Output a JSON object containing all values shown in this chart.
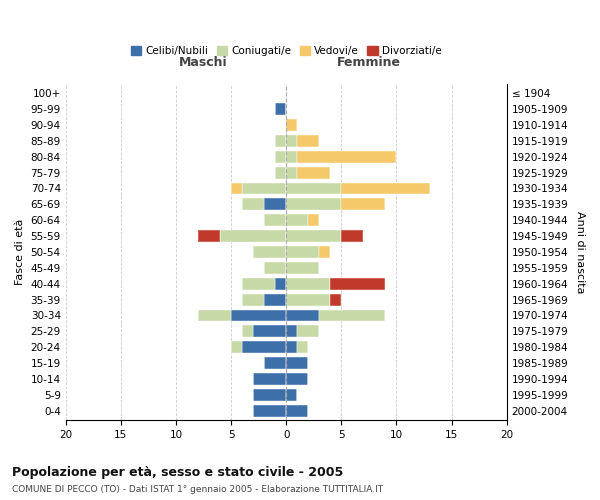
{
  "age_groups": [
    "0-4",
    "5-9",
    "10-14",
    "15-19",
    "20-24",
    "25-29",
    "30-34",
    "35-39",
    "40-44",
    "45-49",
    "50-54",
    "55-59",
    "60-64",
    "65-69",
    "70-74",
    "75-79",
    "80-84",
    "85-89",
    "90-94",
    "95-99",
    "100+"
  ],
  "birth_years": [
    "2000-2004",
    "1995-1999",
    "1990-1994",
    "1985-1989",
    "1980-1984",
    "1975-1979",
    "1970-1974",
    "1965-1969",
    "1960-1964",
    "1955-1959",
    "1950-1954",
    "1945-1949",
    "1940-1944",
    "1935-1939",
    "1930-1934",
    "1925-1929",
    "1920-1924",
    "1915-1919",
    "1910-1914",
    "1905-1909",
    "≤ 1904"
  ],
  "maschi": {
    "celibi": [
      3,
      3,
      3,
      2,
      4,
      3,
      5,
      2,
      1,
      0,
      0,
      0,
      0,
      2,
      0,
      0,
      0,
      0,
      0,
      1,
      0
    ],
    "coniugati": [
      0,
      0,
      0,
      0,
      1,
      1,
      3,
      2,
      3,
      2,
      3,
      6,
      2,
      2,
      4,
      1,
      1,
      1,
      0,
      0,
      0
    ],
    "vedovi": [
      0,
      0,
      0,
      0,
      0,
      0,
      0,
      0,
      0,
      0,
      0,
      0,
      0,
      0,
      1,
      0,
      0,
      0,
      0,
      0,
      0
    ],
    "divorziati": [
      0,
      0,
      0,
      0,
      0,
      0,
      0,
      0,
      0,
      0,
      0,
      2,
      0,
      0,
      0,
      0,
      0,
      0,
      0,
      0,
      0
    ]
  },
  "femmine": {
    "nubili": [
      2,
      1,
      2,
      2,
      1,
      1,
      3,
      0,
      0,
      0,
      0,
      0,
      0,
      0,
      0,
      0,
      0,
      0,
      0,
      0,
      0
    ],
    "coniugate": [
      0,
      0,
      0,
      0,
      1,
      2,
      6,
      4,
      4,
      3,
      3,
      5,
      2,
      5,
      5,
      1,
      1,
      1,
      0,
      0,
      0
    ],
    "vedove": [
      0,
      0,
      0,
      0,
      0,
      0,
      0,
      0,
      0,
      0,
      1,
      0,
      1,
      4,
      8,
      3,
      9,
      2,
      1,
      0,
      0
    ],
    "divorziate": [
      0,
      0,
      0,
      0,
      0,
      0,
      0,
      1,
      5,
      0,
      0,
      2,
      0,
      0,
      0,
      0,
      0,
      0,
      0,
      0,
      0
    ]
  },
  "colors": {
    "celibi_nubili": "#3d6fa8",
    "coniugati": "#c8d9a8",
    "vedovi": "#f5c86a",
    "divorziati": "#c0392b"
  },
  "xlim": [
    -20,
    20
  ],
  "xticks": [
    -20,
    -15,
    -10,
    -5,
    0,
    5,
    10,
    15,
    20
  ],
  "xtick_labels": [
    "20",
    "15",
    "10",
    "5",
    "0",
    "5",
    "10",
    "15",
    "20"
  ],
  "title": "Popolazione per età, sesso e stato civile - 2005",
  "subtitle": "COMUNE DI PECCO (TO) - Dati ISTAT 1° gennaio 2005 - Elaborazione TUTTITALIA.IT",
  "ylabel_left": "Fasce di età",
  "ylabel_right": "Anni di nascita",
  "label_maschi": "Maschi",
  "label_femmine": "Femmine",
  "legend_labels": [
    "Celibi/Nubili",
    "Coniugati/e",
    "Vedovi/e",
    "Divorziati/e"
  ],
  "background_color": "#ffffff",
  "grid_color": "#cccccc"
}
